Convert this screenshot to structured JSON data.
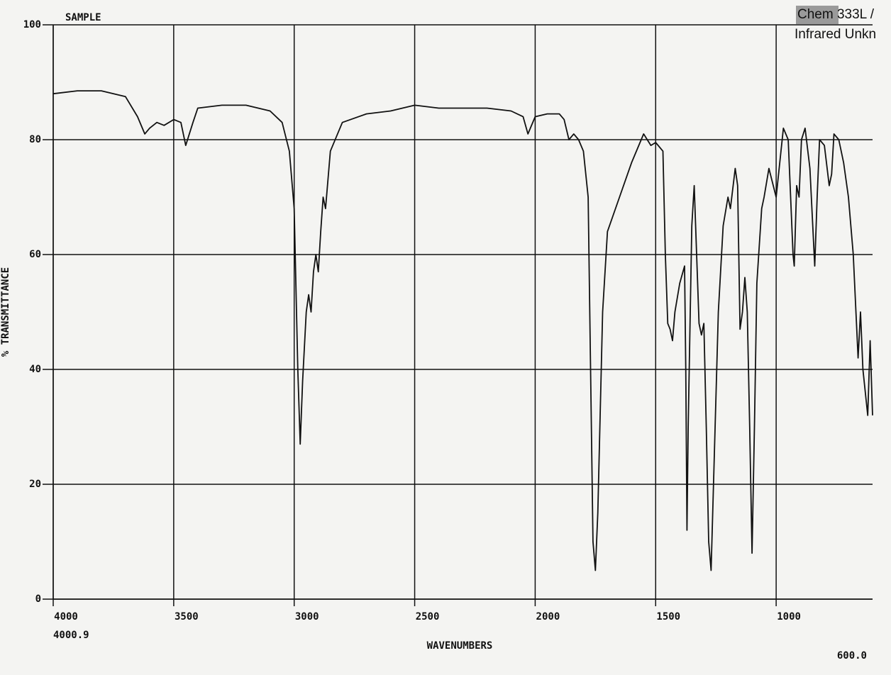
{
  "chart_data": {
    "type": "line",
    "title": "SAMPLE",
    "y_label": "% TRANSMITTANCE",
    "x_label": "WAVENUMBERS",
    "x_start_label": "4000.9",
    "x_end_label": "600.0",
    "header_lines": [
      "Chem 333L /",
      "Infrared Unkn"
    ],
    "color": "#111111",
    "grid": true,
    "xlim": [
      4000,
      600
    ],
    "ylim": [
      0,
      100
    ],
    "xticks": [
      4000,
      3500,
      3000,
      2500,
      2000,
      1500,
      1000
    ],
    "yticks": [
      0,
      20,
      40,
      60,
      80,
      100
    ],
    "x": [
      4000,
      3900,
      3800,
      3700,
      3650,
      3620,
      3600,
      3570,
      3540,
      3500,
      3470,
      3450,
      3420,
      3400,
      3300,
      3200,
      3100,
      3050,
      3020,
      3000,
      2985,
      2975,
      2965,
      2950,
      2940,
      2930,
      2920,
      2910,
      2900,
      2890,
      2880,
      2870,
      2850,
      2800,
      2700,
      2600,
      2500,
      2400,
      2300,
      2200,
      2100,
      2050,
      2030,
      2000,
      1950,
      1900,
      1880,
      1860,
      1840,
      1820,
      1800,
      1780,
      1770,
      1760,
      1750,
      1740,
      1720,
      1700,
      1650,
      1600,
      1550,
      1520,
      1500,
      1470,
      1460,
      1450,
      1440,
      1430,
      1420,
      1400,
      1380,
      1375,
      1370,
      1365,
      1350,
      1340,
      1320,
      1310,
      1300,
      1290,
      1280,
      1270,
      1260,
      1240,
      1220,
      1200,
      1190,
      1170,
      1160,
      1150,
      1140,
      1130,
      1120,
      1110,
      1100,
      1090,
      1080,
      1060,
      1050,
      1030,
      1000,
      970,
      950,
      930,
      925,
      915,
      905,
      895,
      880,
      860,
      840,
      830,
      820,
      800,
      780,
      770,
      760,
      740,
      720,
      700,
      680,
      660,
      650,
      640,
      620,
      610,
      600
    ],
    "values": [
      88,
      88.5,
      88.5,
      87.5,
      84,
      81,
      82,
      83,
      82.5,
      83.5,
      83,
      79,
      83,
      85.5,
      86,
      86,
      85,
      83,
      78,
      68,
      40,
      27,
      38,
      50,
      53,
      50,
      57,
      60,
      57,
      64,
      70,
      68,
      78,
      83,
      84.5,
      85,
      86,
      85.5,
      85.5,
      85.5,
      85,
      84,
      81,
      84,
      84.5,
      84.5,
      83.5,
      80,
      81,
      80,
      78,
      70,
      40,
      10,
      5,
      15,
      50,
      64,
      70,
      76,
      81,
      79,
      79.5,
      78,
      60,
      48,
      47,
      45,
      50,
      55,
      58,
      40,
      12,
      30,
      65,
      72,
      48,
      46,
      48,
      30,
      10,
      5,
      20,
      50,
      65,
      70,
      68,
      75,
      72,
      47,
      50,
      56,
      50,
      30,
      8,
      30,
      55,
      68,
      70,
      75,
      70,
      82,
      80,
      60,
      58,
      72,
      70,
      80,
      82,
      75,
      58,
      70,
      80,
      79,
      72,
      74,
      81,
      80,
      76,
      70,
      60,
      42,
      50,
      40,
      32,
      45,
      32
    ]
  }
}
